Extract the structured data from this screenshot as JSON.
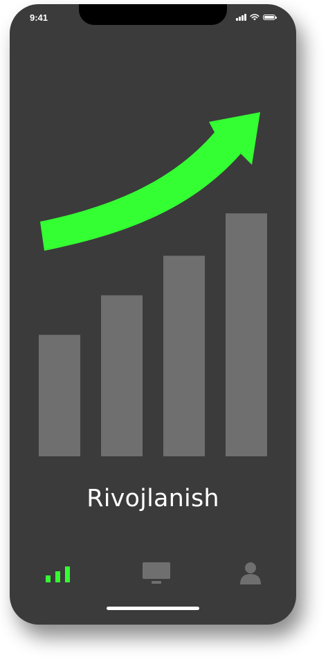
{
  "status_bar": {
    "time": "9:41",
    "icons": [
      "cellular-signal-icon",
      "wifi-icon",
      "battery-icon"
    ]
  },
  "hero": {
    "title": "Rivojlanish",
    "illustration": "growth-bar-chart-with-upward-arrow",
    "bar_levels": [
      0.43,
      0.57,
      0.71,
      0.86
    ],
    "arrow_color": "#33ff33",
    "bar_color": "#6f6f6f"
  },
  "tab_bar": {
    "tabs": [
      {
        "id": "stats",
        "icon": "signal-bars-icon",
        "active": true
      },
      {
        "id": "monitor",
        "icon": "monitor-icon",
        "active": false
      },
      {
        "id": "profile",
        "icon": "user-icon",
        "active": false
      }
    ],
    "active_color": "#33ff33",
    "inactive_color": "#6f6f6f"
  },
  "theme": {
    "background": "#3b3b3b",
    "text": "#ffffff"
  }
}
